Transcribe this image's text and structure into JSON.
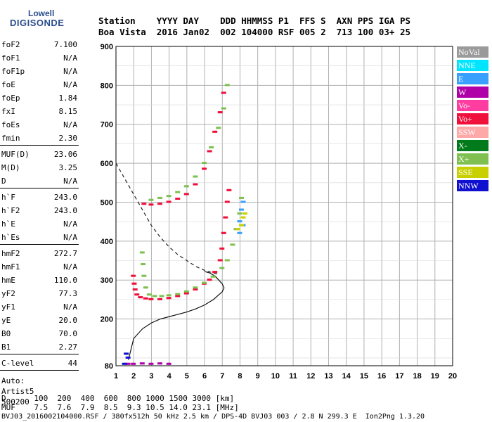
{
  "logo": {
    "line1": "Lowell",
    "line2": "DIGISONDE"
  },
  "header": {
    "line1": "Station    YYYY DAY    DDD HHMMSS P1  FFS S  AXN PPS IGA PS",
    "line2": "Boa Vista  2016 Jan02  002 104000 RSF 005 2  713 100 03+ 25"
  },
  "params": {
    "group1": [
      {
        "k": "foF2",
        "v": "7.100"
      },
      {
        "k": "foF1",
        "v": "N/A"
      },
      {
        "k": "foF1p",
        "v": "N/A"
      },
      {
        "k": "foE",
        "v": "N/A"
      },
      {
        "k": "foEp",
        "v": "1.84"
      },
      {
        "k": "fxI",
        "v": "8.15"
      },
      {
        "k": "foEs",
        "v": "N/A"
      },
      {
        "k": "fmin",
        "v": "2.30"
      }
    ],
    "group2": [
      {
        "k": "MUF(D)",
        "v": "23.06"
      },
      {
        "k": "M(D)",
        "v": "3.25"
      },
      {
        "k": "D",
        "v": "N/A"
      }
    ],
    "group3": [
      {
        "k": "h`F",
        "v": "243.0"
      },
      {
        "k": "h`F2",
        "v": "243.0"
      },
      {
        "k": "h`E",
        "v": "N/A"
      },
      {
        "k": "h`Es",
        "v": "N/A"
      }
    ],
    "group4": [
      {
        "k": "hmF2",
        "v": "272.7"
      },
      {
        "k": "hmF1",
        "v": "N/A"
      },
      {
        "k": "hmE",
        "v": "110.0"
      },
      {
        "k": "yF2",
        "v": "77.3"
      },
      {
        "k": "yF1",
        "v": "N/A"
      },
      {
        "k": "yE",
        "v": "20.0"
      },
      {
        "k": "B0",
        "v": "70.0"
      },
      {
        "k": "B1",
        "v": "2.27"
      }
    ],
    "group5": [
      {
        "k": "C-level",
        "v": "44"
      }
    ],
    "auto": [
      "Auto:",
      "Artist5",
      "500200"
    ]
  },
  "bottom": {
    "d_row": "D      100  200  400  600  800 1000 1500 3000 [km]",
    "muf_row": "MUF    7.5  7.6  7.9  8.5  9.3 10.5 14.0 23.1 [MHz]",
    "footer": "BVJ03_2016002104000.RSF / 380fx512h 50 kHz 2.5 km / DPS-4D BVJ03 003 / 2.8 N 299.3 E  Ion2Png 1.3.20"
  },
  "legend": [
    {
      "label": "NoVal",
      "color": "#9a9a9a"
    },
    {
      "label": "NNE",
      "color": "#00e5ff"
    },
    {
      "label": "E",
      "color": "#3aa0ff"
    },
    {
      "label": "W",
      "color": "#b000a8"
    },
    {
      "label": "Vo-",
      "color": "#ff3ca0"
    },
    {
      "label": "Vo+",
      "color": "#f0103c"
    },
    {
      "label": "SSW",
      "color": "#ffa8a8"
    },
    {
      "label": "X-",
      "color": "#007a1a"
    },
    {
      "label": "X+",
      "color": "#7fc050"
    },
    {
      "label": "SSE",
      "color": "#c8d000"
    },
    {
      "label": "NNW",
      "color": "#1010d0"
    }
  ],
  "chart_data": {
    "type": "scatter",
    "xlim": [
      1,
      20
    ],
    "ylim": [
      80,
      900
    ],
    "x_ticks": [
      1,
      2,
      3,
      4,
      5,
      6,
      7,
      8,
      9,
      10,
      11,
      12,
      13,
      14,
      15,
      16,
      17,
      18,
      19,
      20
    ],
    "y_ticks": [
      80,
      200,
      300,
      400,
      500,
      600,
      700,
      800,
      900
    ],
    "grid": true,
    "legend_position": "right",
    "series": [
      {
        "color": "#f0103c",
        "points": [
          [
            2.0,
            310
          ],
          [
            2.05,
            290
          ],
          [
            2.1,
            275
          ],
          [
            2.2,
            262
          ],
          [
            2.4,
            255
          ],
          [
            2.7,
            252
          ],
          [
            3.0,
            250
          ],
          [
            3.5,
            250
          ],
          [
            4.0,
            253
          ],
          [
            4.5,
            258
          ],
          [
            5.0,
            265
          ],
          [
            5.5,
            275
          ],
          [
            6.0,
            290
          ],
          [
            6.3,
            300
          ],
          [
            6.6,
            320
          ],
          [
            6.9,
            350
          ],
          [
            7.0,
            380
          ],
          [
            7.1,
            420
          ],
          [
            7.2,
            460
          ],
          [
            7.3,
            500
          ],
          [
            7.4,
            530
          ]
        ]
      },
      {
        "color": "#7fc050",
        "points": [
          [
            2.5,
            370
          ],
          [
            2.55,
            340
          ],
          [
            2.6,
            310
          ],
          [
            2.7,
            280
          ],
          [
            2.9,
            262
          ],
          [
            3.2,
            258
          ],
          [
            3.6,
            258
          ],
          [
            4.0,
            260
          ],
          [
            4.5,
            263
          ],
          [
            5.0,
            270
          ],
          [
            5.5,
            280
          ],
          [
            6.0,
            292
          ],
          [
            6.5,
            308
          ],
          [
            7.0,
            330
          ],
          [
            7.3,
            350
          ],
          [
            7.6,
            390
          ],
          [
            7.8,
            430
          ],
          [
            8.0,
            470
          ],
          [
            8.1,
            510
          ]
        ]
      },
      {
        "color": "#f0103c",
        "points": [
          [
            2.6,
            495
          ],
          [
            3.0,
            493
          ],
          [
            3.5,
            495
          ],
          [
            4.0,
            500
          ],
          [
            4.5,
            508
          ],
          [
            5.0,
            520
          ],
          [
            5.5,
            545
          ],
          [
            6.0,
            585
          ],
          [
            6.3,
            630
          ],
          [
            6.6,
            680
          ],
          [
            6.9,
            730
          ],
          [
            7.1,
            780
          ]
        ]
      },
      {
        "color": "#7fc050",
        "points": [
          [
            3.0,
            505
          ],
          [
            3.5,
            510
          ],
          [
            4.0,
            515
          ],
          [
            4.5,
            525
          ],
          [
            5.0,
            540
          ],
          [
            5.5,
            565
          ],
          [
            6.0,
            600
          ],
          [
            6.4,
            640
          ],
          [
            6.8,
            690
          ],
          [
            7.1,
            740
          ],
          [
            7.3,
            800
          ]
        ]
      },
      {
        "color": "#3aa0ff",
        "points": [
          [
            8.0,
            450
          ],
          [
            8.1,
            480
          ],
          [
            8.2,
            500
          ],
          [
            8.0,
            420
          ],
          [
            8.2,
            440
          ]
        ]
      },
      {
        "color": "#c8d000",
        "points": [
          [
            8.1,
            440
          ],
          [
            8.2,
            460
          ],
          [
            8.3,
            470
          ],
          [
            7.9,
            430
          ]
        ]
      },
      {
        "color": "#b000a8",
        "points": [
          [
            1.7,
            84
          ],
          [
            2.0,
            84
          ],
          [
            2.5,
            85
          ],
          [
            3.0,
            84
          ],
          [
            3.5,
            85
          ],
          [
            4.0,
            84
          ]
        ]
      },
      {
        "color": "#1010d0",
        "points": [
          [
            1.5,
            84
          ],
          [
            1.6,
            110
          ],
          [
            1.7,
            100
          ]
        ]
      }
    ],
    "profile_curve": [
      [
        1.7,
        95
      ],
      [
        2.0,
        150
      ],
      [
        2.5,
        175
      ],
      [
        3.0,
        190
      ],
      [
        3.5,
        200
      ],
      [
        4.0,
        206
      ],
      [
        4.5,
        212
      ],
      [
        5.0,
        218
      ],
      [
        5.5,
        226
      ],
      [
        6.0,
        236
      ],
      [
        6.5,
        250
      ],
      [
        7.0,
        270
      ],
      [
        7.1,
        280
      ],
      [
        7.0,
        290
      ],
      [
        6.8,
        300
      ],
      [
        6.6,
        310
      ],
      [
        6.3,
        318
      ],
      [
        6.0,
        322
      ]
    ],
    "dashed_curve": [
      [
        1.0,
        600
      ],
      [
        1.5,
        560
      ],
      [
        2.0,
        520
      ],
      [
        2.5,
        480
      ],
      [
        3.0,
        440
      ],
      [
        3.5,
        410
      ],
      [
        4.0,
        385
      ],
      [
        4.5,
        365
      ],
      [
        5.0,
        350
      ],
      [
        5.5,
        335
      ],
      [
        6.0,
        325
      ],
      [
        6.5,
        318
      ],
      [
        6.8,
        315
      ]
    ]
  }
}
